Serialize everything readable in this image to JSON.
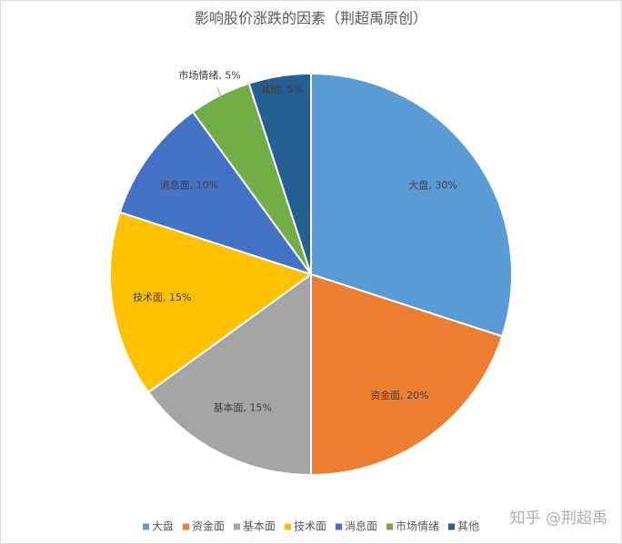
{
  "chart_data": {
    "type": "pie",
    "title": "影响股价涨跌的因素（荆超禹原创）",
    "categories": [
      "大盘",
      "资金面",
      "基本面",
      "技术面",
      "消息面",
      "市场情绪",
      "其他"
    ],
    "values": [
      30,
      20,
      15,
      15,
      10,
      5,
      5
    ],
    "value_labels": [
      "大盘, 30%",
      "资金面, 20%",
      "基本面, 15%",
      "技术面, 15%",
      "消息面, 10%",
      "市场情绪, 5%",
      "其他, 5%"
    ],
    "colors": [
      "#5b9bd5",
      "#ed7d31",
      "#a5a5a5",
      "#ffc000",
      "#4472c4",
      "#70ad47",
      "#255e91"
    ],
    "legend": "bottom",
    "watermark": "知乎 @荆超禹"
  }
}
